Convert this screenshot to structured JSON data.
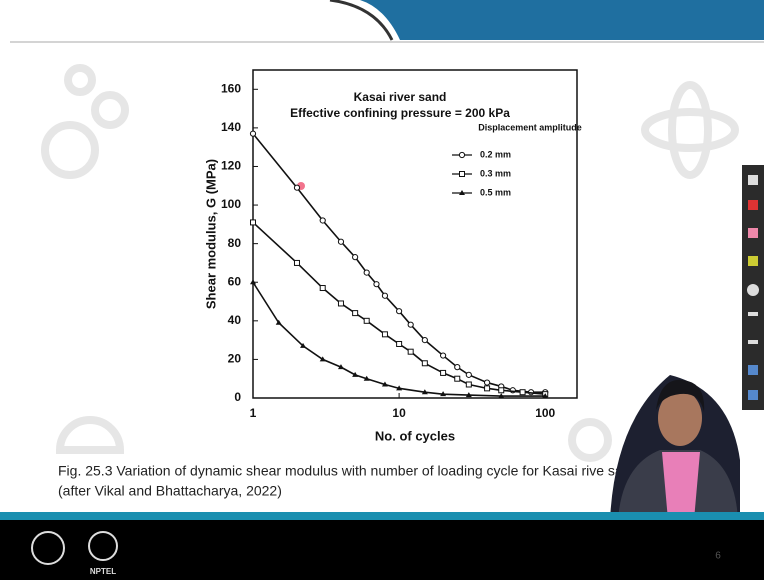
{
  "chart_data": {
    "type": "line",
    "title": "Kasai river sand",
    "subtitle": "Effective confining pressure = 200 kPa",
    "xlabel": "No. of cycles",
    "ylabel": "Shear modulus, G (MPa)",
    "legend_title": "Displacement amplitude",
    "xscale": "log",
    "xlim": [
      1,
      165
    ],
    "xticks": [
      1,
      10,
      100
    ],
    "ylim": [
      0,
      170
    ],
    "yticks": [
      0,
      20,
      40,
      60,
      80,
      100,
      120,
      140,
      160
    ],
    "series": [
      {
        "name": "0.2 mm",
        "color": "#111111",
        "marker": "circle",
        "x": [
          1,
          2,
          3,
          4,
          5,
          6,
          7,
          8,
          10,
          12,
          15,
          20,
          25,
          30,
          40,
          50,
          60,
          80,
          100
        ],
        "values": [
          137,
          109,
          92,
          81,
          73,
          65,
          59,
          53,
          45,
          38,
          30,
          22,
          16,
          12,
          8,
          6,
          4,
          3,
          3
        ]
      },
      {
        "name": "0.3 mm",
        "color": "#111111",
        "marker": "square",
        "x": [
          1,
          2,
          3,
          4,
          5,
          6,
          8,
          10,
          12,
          15,
          20,
          25,
          30,
          40,
          50,
          70,
          100
        ],
        "values": [
          91,
          70,
          57,
          49,
          44,
          40,
          33,
          28,
          24,
          18,
          13,
          10,
          7,
          5,
          4,
          3,
          2
        ]
      },
      {
        "name": "0.5 mm",
        "color": "#111111",
        "marker": "triangle",
        "x": [
          1,
          1.5,
          2.2,
          3,
          4,
          5,
          6,
          8,
          10,
          15,
          20,
          30,
          50,
          100
        ],
        "values": [
          60,
          39,
          27,
          20,
          16,
          12,
          10,
          7,
          5,
          3,
          2,
          1.5,
          1,
          1
        ]
      }
    ]
  },
  "caption": [
    "Fig. 25.3 Variation of dynamic shear modulus with number of loading cycle for Kasai rive sand",
    "(after Vikal and Bhattacharya, 2022)"
  ],
  "footer": {
    "logo_label": "NPTEL",
    "slide_number": "6"
  }
}
